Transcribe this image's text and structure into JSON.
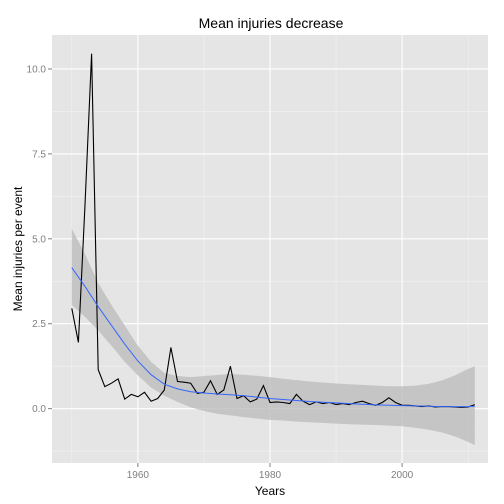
{
  "chart_data": {
    "type": "line",
    "title": "Mean injuries decrease",
    "xlabel": "Years",
    "ylabel": "Mean injuries per event",
    "xlim": [
      1947.0,
      2013.0
    ],
    "ylim": [
      -1.6,
      11.0
    ],
    "x_ticks": [
      1960,
      1980,
      2000
    ],
    "x_tick_labels": [
      "1960",
      "1980",
      "2000"
    ],
    "y_ticks": [
      0.0,
      2.5,
      5.0,
      7.5,
      10.0
    ],
    "y_tick_labels": [
      "0.0",
      "2.5",
      "5.0",
      "7.5",
      "10.0"
    ],
    "grid": true,
    "colors": {
      "panel": "#e5e5e5",
      "grid_major": "#ffffff",
      "grid_minor": "#f2f2f2",
      "series": "#000000",
      "smooth": "#3366ff",
      "ribbon": "#bdbdbd",
      "tick_label": "#7f7f7f"
    },
    "series": [
      {
        "role": "observed",
        "x": [
          1950,
          1951,
          1952,
          1953,
          1954,
          1955,
          1956,
          1957,
          1958,
          1959,
          1960,
          1961,
          1962,
          1963,
          1964,
          1965,
          1966,
          1967,
          1968,
          1969,
          1970,
          1971,
          1972,
          1973,
          1974,
          1975,
          1976,
          1977,
          1978,
          1979,
          1980,
          1981,
          1982,
          1983,
          1984,
          1985,
          1986,
          1987,
          1988,
          1989,
          1990,
          1991,
          1992,
          1993,
          1994,
          1995,
          1996,
          1997,
          1998,
          1999,
          2000,
          2001,
          2002,
          2003,
          2004,
          2005,
          2006,
          2007,
          2008,
          2009,
          2010,
          2011
        ],
        "y": [
          2.95,
          1.95,
          6.0,
          10.45,
          1.15,
          0.65,
          0.75,
          0.88,
          0.28,
          0.42,
          0.35,
          0.48,
          0.22,
          0.3,
          0.55,
          1.8,
          0.8,
          0.78,
          0.75,
          0.45,
          0.48,
          0.82,
          0.42,
          0.55,
          1.25,
          0.3,
          0.38,
          0.2,
          0.28,
          0.68,
          0.18,
          0.2,
          0.18,
          0.15,
          0.42,
          0.22,
          0.12,
          0.2,
          0.15,
          0.18,
          0.12,
          0.15,
          0.12,
          0.18,
          0.22,
          0.15,
          0.1,
          0.18,
          0.32,
          0.18,
          0.1,
          0.1,
          0.08,
          0.06,
          0.08,
          0.05,
          0.06,
          0.06,
          0.05,
          0.04,
          0.05,
          0.12
        ]
      },
      {
        "role": "smooth",
        "x": [
          1950,
          1952,
          1954,
          1956,
          1958,
          1960,
          1962,
          1964,
          1966,
          1968,
          1970,
          1972,
          1974,
          1976,
          1978,
          1980,
          1982,
          1984,
          1986,
          1988,
          1990,
          1992,
          1994,
          1996,
          1998,
          2000,
          2002,
          2004,
          2006,
          2008,
          2010,
          2011
        ],
        "y": [
          4.15,
          3.6,
          3.0,
          2.45,
          1.9,
          1.4,
          1.0,
          0.72,
          0.58,
          0.5,
          0.46,
          0.43,
          0.41,
          0.38,
          0.34,
          0.3,
          0.27,
          0.24,
          0.21,
          0.19,
          0.17,
          0.15,
          0.13,
          0.11,
          0.1,
          0.09,
          0.08,
          0.07,
          0.06,
          0.06,
          0.06,
          0.07
        ],
        "lower": [
          3.05,
          2.7,
          2.3,
          1.85,
          1.38,
          0.98,
          0.62,
          0.38,
          0.2,
          0.04,
          -0.07,
          -0.15,
          -0.2,
          -0.25,
          -0.29,
          -0.33,
          -0.35,
          -0.38,
          -0.4,
          -0.42,
          -0.44,
          -0.46,
          -0.47,
          -0.48,
          -0.5,
          -0.52,
          -0.56,
          -0.62,
          -0.7,
          -0.82,
          -0.98,
          -1.08
        ],
        "upper": [
          5.3,
          4.55,
          3.7,
          3.05,
          2.45,
          1.85,
          1.38,
          1.05,
          0.96,
          0.93,
          0.96,
          0.99,
          1.02,
          1.0,
          0.97,
          0.93,
          0.88,
          0.84,
          0.8,
          0.77,
          0.74,
          0.72,
          0.7,
          0.68,
          0.66,
          0.66,
          0.68,
          0.73,
          0.83,
          0.98,
          1.17,
          1.25
        ]
      }
    ]
  }
}
